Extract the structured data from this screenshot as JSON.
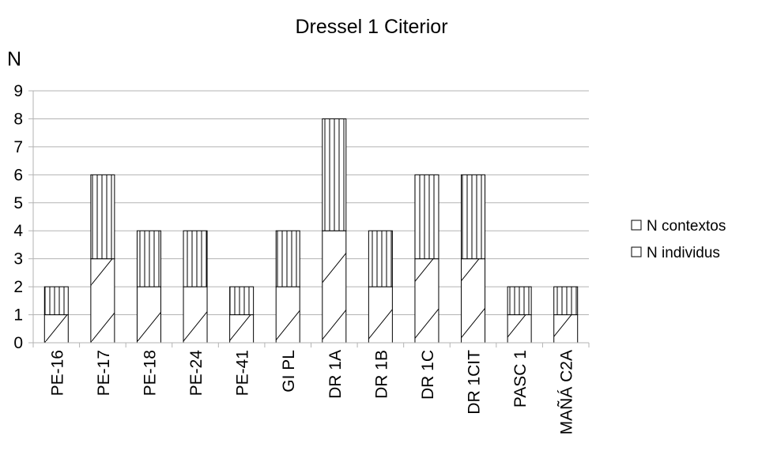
{
  "chart_data": {
    "type": "bar",
    "stacked": true,
    "title": "Dressel 1 Citerior",
    "xlabel": "",
    "ylabel": "N",
    "ylim": [
      0,
      9
    ],
    "yticks": [
      "0",
      "1",
      "2",
      "3",
      "4",
      "5",
      "6",
      "7",
      "8",
      "9"
    ],
    "grid": true,
    "legend_position": "right",
    "categories": [
      "PE-16",
      "PE-17",
      "PE-18",
      "PE-24",
      "PE-41",
      "GI PL",
      "DR 1A",
      "DR 1B",
      "DR 1C",
      "DR 1CIT",
      "PASC 1",
      "MAÑÁ C2A"
    ],
    "series": [
      {
        "name": "N individus",
        "pattern": "diagonal",
        "values": [
          1,
          3,
          2,
          2,
          1,
          2,
          4,
          2,
          3,
          3,
          1,
          1
        ]
      },
      {
        "name": "N contextos",
        "pattern": "vertical",
        "values": [
          1,
          3,
          2,
          2,
          1,
          2,
          4,
          2,
          3,
          3,
          1,
          1
        ]
      }
    ],
    "legend": [
      "N contextos",
      "N individus"
    ]
  }
}
